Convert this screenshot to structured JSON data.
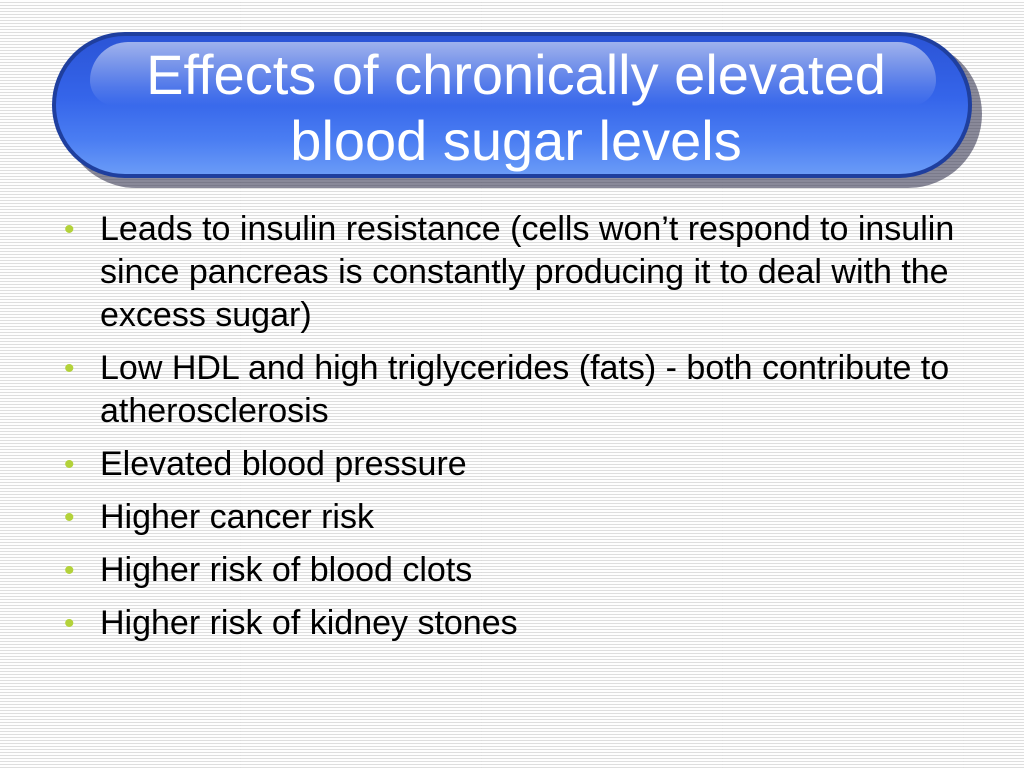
{
  "title": {
    "line1": "Effects of chronically elevated",
    "line2": "blood sugar levels"
  },
  "bullets": [
    "Leads to insulin resistance (cells won’t respond to insulin since pancreas is constantly producing it to deal with the excess sugar)",
    "Low HDL and high triglycerides (fats) - both contribute to atherosclerosis",
    "Elevated blood pressure",
    "Higher cancer risk",
    "Higher risk of blood clots",
    "Higher risk of kidney stones"
  ],
  "colors": {
    "title_fill": "#3565ea",
    "title_border": "#1f3f9e",
    "bullet": "#b3d23a"
  }
}
